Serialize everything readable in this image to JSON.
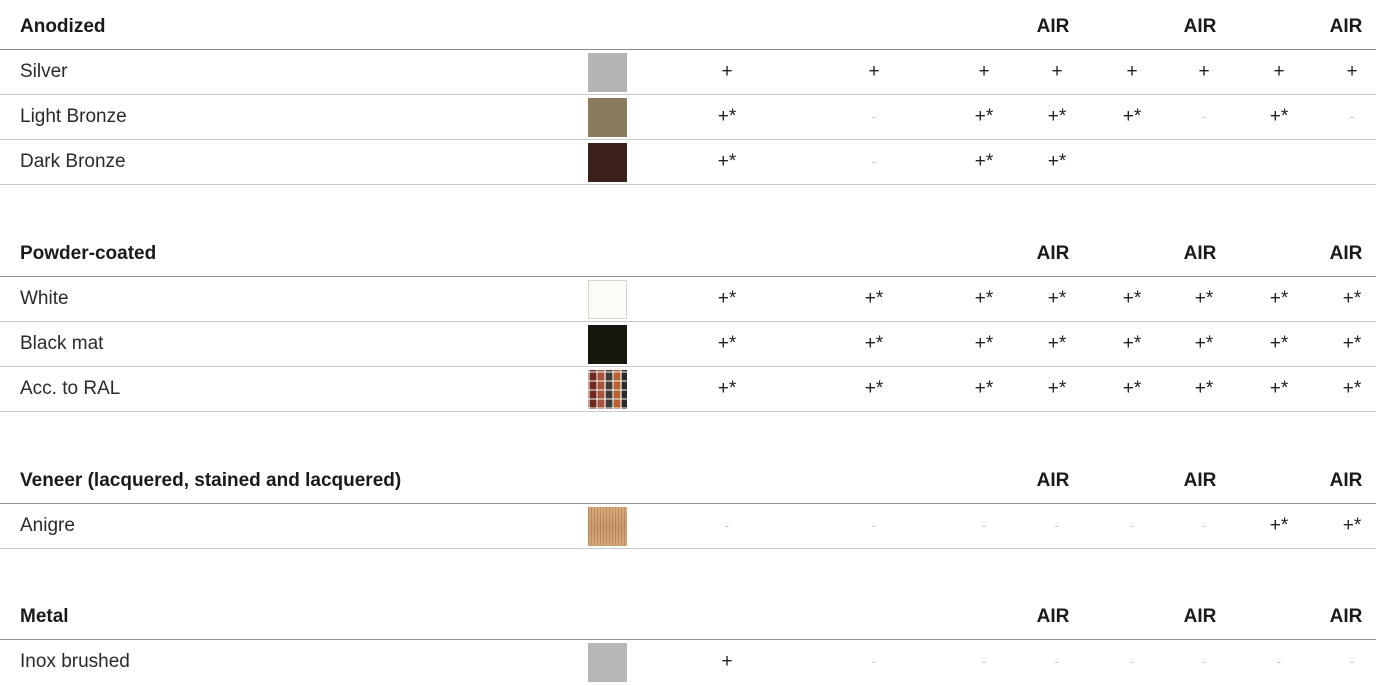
{
  "columns_air": [
    "AIR",
    "AIR",
    "AIR"
  ],
  "sections": [
    {
      "title": "Anodized",
      "rows": [
        {
          "label": "Silver",
          "swatch": "#b4b4b4",
          "cells": [
            "+",
            "+",
            "+",
            "+",
            "+",
            "+",
            "+",
            "+"
          ]
        },
        {
          "label": "Light Bronze",
          "swatch": "#8c7a5e",
          "cells": [
            "+*",
            "-",
            "+*",
            "+*",
            "+*",
            "-",
            "+*",
            "-"
          ]
        },
        {
          "label": "Dark Bronze",
          "swatch": "#3a211b",
          "cells": [
            "+*",
            "-",
            "+*",
            "+*",
            "",
            "",
            "",
            ""
          ]
        }
      ]
    },
    {
      "title": "Powder-coated",
      "rows": [
        {
          "label": "White",
          "swatch": "#fbfbf8",
          "cells": [
            "+*",
            "+*",
            "+*",
            "+*",
            "+*",
            "+*",
            "+*",
            "+*"
          ]
        },
        {
          "label": "Black mat",
          "swatch": "#14180f",
          "cells": [
            "+*",
            "+*",
            "+*",
            "+*",
            "+*",
            "+*",
            "+*",
            "+*"
          ]
        },
        {
          "label": "Acc. to RAL",
          "swatch": "plaid",
          "cells": [
            "+*",
            "+*",
            "+*",
            "+*",
            "+*",
            "+*",
            "+*",
            "+*"
          ]
        }
      ]
    },
    {
      "title": "Veneer (lacquered, stained and lacquered)",
      "rows": [
        {
          "label": "Anigre",
          "swatch": "wood",
          "cells": [
            "-",
            "-",
            "-",
            "-",
            "-",
            "-",
            "+*",
            "+*"
          ]
        }
      ]
    },
    {
      "title": "Metal",
      "rows": [
        {
          "label": "Inox brushed",
          "swatch": "#b7b7b7",
          "cells": [
            "+",
            "-",
            "-",
            "-",
            "-",
            "-",
            "-",
            "-"
          ]
        }
      ]
    }
  ]
}
